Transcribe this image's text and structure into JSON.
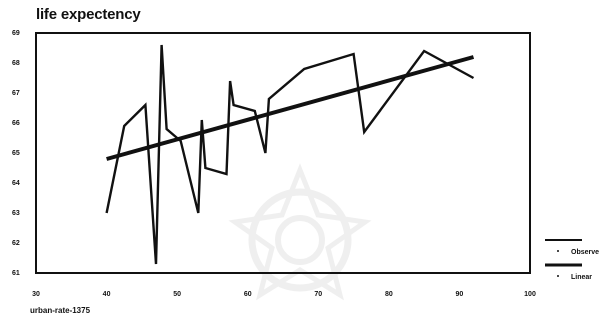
{
  "chart_data": {
    "type": "line",
    "title": "life expectency",
    "xlabel": "urban-rate-1375",
    "ylabel": "",
    "xlim": [
      30,
      100
    ],
    "ylim": [
      61,
      69
    ],
    "x_ticks": [
      30,
      40,
      50,
      60,
      70,
      80,
      90,
      100
    ],
    "y_ticks": [
      61,
      62,
      63,
      64,
      65,
      66,
      67,
      68,
      69
    ],
    "series": [
      {
        "name": "Observe",
        "color": "#111111",
        "points": [
          [
            40,
            63.0
          ],
          [
            42.5,
            65.9
          ],
          [
            45.5,
            66.6
          ],
          [
            47,
            61.3
          ],
          [
            47.8,
            68.6
          ],
          [
            48.5,
            65.8
          ],
          [
            49.5,
            65.6
          ],
          [
            50.5,
            65.4
          ],
          [
            53,
            63.0
          ],
          [
            53.5,
            66.1
          ],
          [
            54,
            64.5
          ],
          [
            57,
            64.3
          ],
          [
            57.5,
            67.4
          ],
          [
            58,
            66.6
          ],
          [
            61,
            66.4
          ],
          [
            62.5,
            65.0
          ],
          [
            63,
            66.8
          ],
          [
            68,
            67.8
          ],
          [
            75,
            68.3
          ],
          [
            76.5,
            65.7
          ],
          [
            85,
            68.4
          ],
          [
            92,
            67.5
          ]
        ]
      },
      {
        "name": "Linear",
        "color": "#111111",
        "points": [
          [
            40,
            64.8
          ],
          [
            92,
            68.2
          ]
        ]
      }
    ],
    "legend": {
      "position": "bottom-right",
      "entries": [
        "Observe",
        "Linear"
      ]
    },
    "grid": false
  },
  "watermark": {
    "icon": "ornamental-star-watermark"
  }
}
